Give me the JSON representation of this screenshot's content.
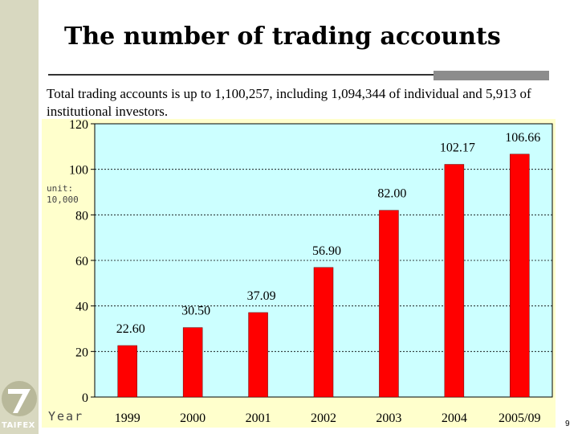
{
  "slide": {
    "title": "The number of trading accounts",
    "description": "Total trading accounts is up to 1,100,257, including 1,094,344 of individual and 5,913 of institutional investors.",
    "logo_text": "TAIFEX",
    "page_number": "9"
  },
  "chart_data": {
    "type": "bar",
    "title": "",
    "xlabel": "Year",
    "ylabel": "unit: 10,000",
    "categories": [
      "1999",
      "2000",
      "2001",
      "2002",
      "2003",
      "2004",
      "2005/09"
    ],
    "values": [
      22.6,
      30.5,
      37.09,
      56.9,
      82.0,
      102.17,
      106.66
    ],
    "value_labels": [
      "22.60",
      "30.50",
      "37.09",
      "56.90",
      "82.00",
      "102.17",
      "106.66"
    ],
    "ylim": [
      0,
      120
    ],
    "yticks": [
      0,
      20,
      40,
      60,
      80,
      100,
      120
    ],
    "grid": true,
    "legend": "none",
    "colors": {
      "bar": "#ff0000",
      "plot_bg": "#ccffff",
      "outer_bg": "#ffffcc"
    }
  }
}
